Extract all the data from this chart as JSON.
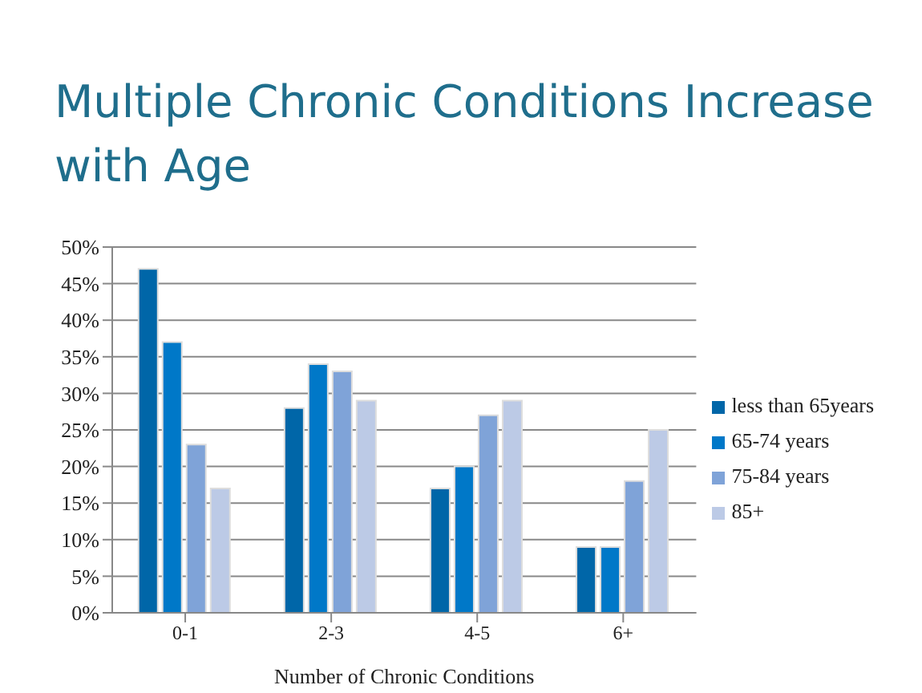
{
  "chart_data": {
    "type": "bar",
    "title": "Multiple Chronic Conditions Increase with Age",
    "xlabel": "Number of Chronic Conditions",
    "categories": [
      "0-1",
      "2-3",
      "4-5",
      "6+"
    ],
    "series": [
      {
        "name": "less than 65years",
        "color": "#0066a8",
        "values": [
          47,
          28,
          17,
          9
        ]
      },
      {
        "name": "65-74 years",
        "color": "#0078c8",
        "values": [
          37,
          34,
          20,
          9
        ]
      },
      {
        "name": "75-84 years",
        "color": "#7fa3d8",
        "values": [
          23,
          33,
          27,
          18
        ]
      },
      {
        "name": "85+",
        "color": "#bccae6",
        "values": [
          17,
          29,
          29,
          25
        ]
      }
    ],
    "ylim": [
      0,
      50
    ],
    "yticks": [
      {
        "value": 0,
        "label": "0%"
      },
      {
        "value": 5,
        "label": "5%"
      },
      {
        "value": 10,
        "label": "10%"
      },
      {
        "value": 15,
        "label": "15%"
      },
      {
        "value": 20,
        "label": "20%"
      },
      {
        "value": 25,
        "label": "25%"
      },
      {
        "value": 30,
        "label": "30%"
      },
      {
        "value": 35,
        "label": "35%"
      },
      {
        "value": 40,
        "label": "40%"
      },
      {
        "value": 45,
        "label": "45%"
      },
      {
        "value": 50,
        "label": "50%"
      }
    ],
    "grid": "y",
    "legend": "right"
  }
}
